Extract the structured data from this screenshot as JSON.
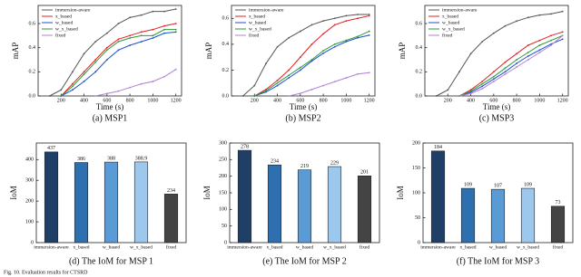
{
  "chart_data": [
    {
      "type": "line",
      "caption": "(a)  MSP1",
      "xlabel": "Time (s)",
      "ylabel": "mAP",
      "x": [
        100,
        200,
        300,
        400,
        500,
        600,
        700,
        800,
        900,
        1000,
        1100,
        1200
      ],
      "xlim": [
        0,
        1250
      ],
      "xticks": [
        200,
        400,
        600,
        800,
        1000,
        1200
      ],
      "ylim": [
        0,
        0.75
      ],
      "yticks": [
        {
          "value": 0,
          "label": "0.0"
        },
        0.2,
        0.4,
        0.6
      ],
      "legend": "upper left",
      "series": [
        {
          "name": "immersion-aware",
          "color": "#555555",
          "values": [
            0,
            0.05,
            0.2,
            0.35,
            0.45,
            0.52,
            0.6,
            0.65,
            0.67,
            0.7,
            0.7,
            0.72
          ]
        },
        {
          "name": "x_based",
          "color": "#e02020",
          "values": [
            null,
            0,
            0.1,
            0.2,
            0.3,
            0.4,
            0.47,
            0.5,
            0.53,
            0.55,
            0.58,
            0.6
          ]
        },
        {
          "name": "w_based",
          "color": "#1f4fd0",
          "values": [
            null,
            0,
            0.05,
            0.12,
            0.2,
            0.3,
            0.38,
            0.42,
            0.45,
            0.48,
            0.52,
            0.53
          ]
        },
        {
          "name": "w_x_based",
          "color": "#2a9a3a",
          "values": [
            null,
            0,
            0.08,
            0.18,
            0.28,
            0.38,
            0.45,
            0.48,
            0.5,
            0.5,
            0.55,
            0.55
          ]
        },
        {
          "name": "fixed",
          "color": "#b07fd8",
          "values": [
            null,
            null,
            null,
            null,
            0,
            0.02,
            0.04,
            0.07,
            0.1,
            0.12,
            0.16,
            0.22
          ]
        }
      ]
    },
    {
      "type": "line",
      "caption": "(b)  MSP2",
      "xlabel": "Time (s)",
      "ylabel": "mAP",
      "x": [
        100,
        200,
        300,
        400,
        500,
        600,
        700,
        800,
        900,
        1000,
        1100,
        1200
      ],
      "xlim": [
        0,
        1250
      ],
      "xticks": [
        200,
        400,
        600,
        800,
        1000,
        1200
      ],
      "ylim": [
        0,
        0.7
      ],
      "yticks": [
        {
          "value": 0,
          "label": "0.0"
        },
        0.2,
        0.4,
        0.6
      ],
      "legend": "upper left",
      "series": [
        {
          "name": "immersion-aware",
          "color": "#555555",
          "values": [
            0,
            0.08,
            0.25,
            0.38,
            0.45,
            0.5,
            0.55,
            0.58,
            0.6,
            0.62,
            0.63,
            0.63
          ]
        },
        {
          "name": "x_based",
          "color": "#e02020",
          "values": [
            null,
            0,
            0.05,
            0.12,
            0.2,
            0.3,
            0.4,
            0.48,
            0.55,
            0.58,
            0.6,
            0.62
          ]
        },
        {
          "name": "w_based",
          "color": "#1f4fd0",
          "values": [
            null,
            0,
            0.03,
            0.08,
            0.14,
            0.2,
            0.27,
            0.33,
            0.38,
            0.42,
            0.45,
            0.47
          ]
        },
        {
          "name": "w_x_based",
          "color": "#2a9a3a",
          "values": [
            null,
            0,
            0.04,
            0.1,
            0.16,
            0.22,
            0.28,
            0.35,
            0.4,
            0.43,
            0.46,
            0.5
          ]
        },
        {
          "name": "fixed",
          "color": "#b07fd8",
          "values": [
            null,
            null,
            null,
            null,
            0,
            0.02,
            0.05,
            0.08,
            0.11,
            0.14,
            0.17,
            0.18
          ]
        }
      ]
    },
    {
      "type": "line",
      "caption": "(c)  MSP3",
      "xlabel": "Time (s)",
      "ylabel": "mAP",
      "x": [
        100,
        200,
        300,
        400,
        500,
        600,
        700,
        800,
        900,
        1000,
        1100,
        1200
      ],
      "xlim": [
        0,
        1250
      ],
      "xticks": [
        200,
        400,
        600,
        800,
        1000,
        1200
      ],
      "ylim": [
        0,
        0.75
      ],
      "yticks": [
        {
          "value": 0,
          "label": "0.0"
        },
        0.2,
        0.4,
        0.6
      ],
      "legend": "upper left",
      "series": [
        {
          "name": "immersion-aware",
          "color": "#555555",
          "values": [
            0,
            0.05,
            0.2,
            0.35,
            0.45,
            0.52,
            0.58,
            0.62,
            0.65,
            0.67,
            0.68,
            0.7
          ]
        },
        {
          "name": "x_based",
          "color": "#e02020",
          "values": [
            null,
            null,
            0,
            0.05,
            0.12,
            0.2,
            0.28,
            0.35,
            0.42,
            0.46,
            0.5,
            0.53
          ]
        },
        {
          "name": "w_based",
          "color": "#1f4fd0",
          "values": [
            null,
            null,
            0,
            0.03,
            0.08,
            0.14,
            0.2,
            0.27,
            0.33,
            0.38,
            0.43,
            0.47
          ]
        },
        {
          "name": "w_x_based",
          "color": "#2a9a3a",
          "values": [
            null,
            null,
            0,
            0.04,
            0.1,
            0.16,
            0.23,
            0.3,
            0.36,
            0.42,
            0.46,
            0.5
          ]
        },
        {
          "name": "fixed",
          "color": "#b07fd8",
          "values": [
            null,
            null,
            0,
            0.02,
            0.06,
            0.12,
            0.18,
            0.24,
            0.3,
            0.36,
            0.42,
            0.5
          ]
        }
      ]
    },
    {
      "type": "bar",
      "caption": "(d)  The IoM for MSP 1",
      "ylabel": "IoM",
      "categories": [
        "immersion-aware",
        "x_based",
        "w_based",
        "w_x_based",
        "fixed"
      ],
      "values": [
        437,
        386,
        388,
        388.9,
        234
      ],
      "colors": [
        "#1f3f66",
        "#2e6fb0",
        "#5b9bd5",
        "#9dc8ee",
        "#444444"
      ],
      "ylim": [
        0,
        480
      ],
      "yticks": [
        0,
        100,
        200,
        300,
        400
      ]
    },
    {
      "type": "bar",
      "caption": "(e)  The IoM for MSP 2",
      "ylabel": "IoM",
      "categories": [
        "immersion-aware",
        "x_based",
        "w_based",
        "w_x_based",
        "fixed"
      ],
      "values": [
        278,
        234,
        219,
        229,
        201
      ],
      "colors": [
        "#1f3f66",
        "#2e6fb0",
        "#5b9bd5",
        "#9dc8ee",
        "#444444"
      ],
      "ylim": [
        0,
        300
      ],
      "yticks": [
        0,
        50,
        100,
        150,
        200,
        250,
        300
      ]
    },
    {
      "type": "bar",
      "caption": "(f)  The IoM for MSP 3",
      "ylabel": "IoM",
      "categories": [
        "immersion-aware",
        "x_based",
        "w_based",
        "w_x_based",
        "fixed"
      ],
      "values": [
        184,
        109,
        107,
        109,
        73
      ],
      "colors": [
        "#1f3f66",
        "#2e6fb0",
        "#5b9bd5",
        "#9dc8ee",
        "#444444"
      ],
      "ylim": [
        0,
        200
      ],
      "yticks": [
        0,
        50,
        100,
        150,
        200
      ]
    }
  ],
  "figure_caption": "Fig. 10.  Evaluation results for CTSRD"
}
